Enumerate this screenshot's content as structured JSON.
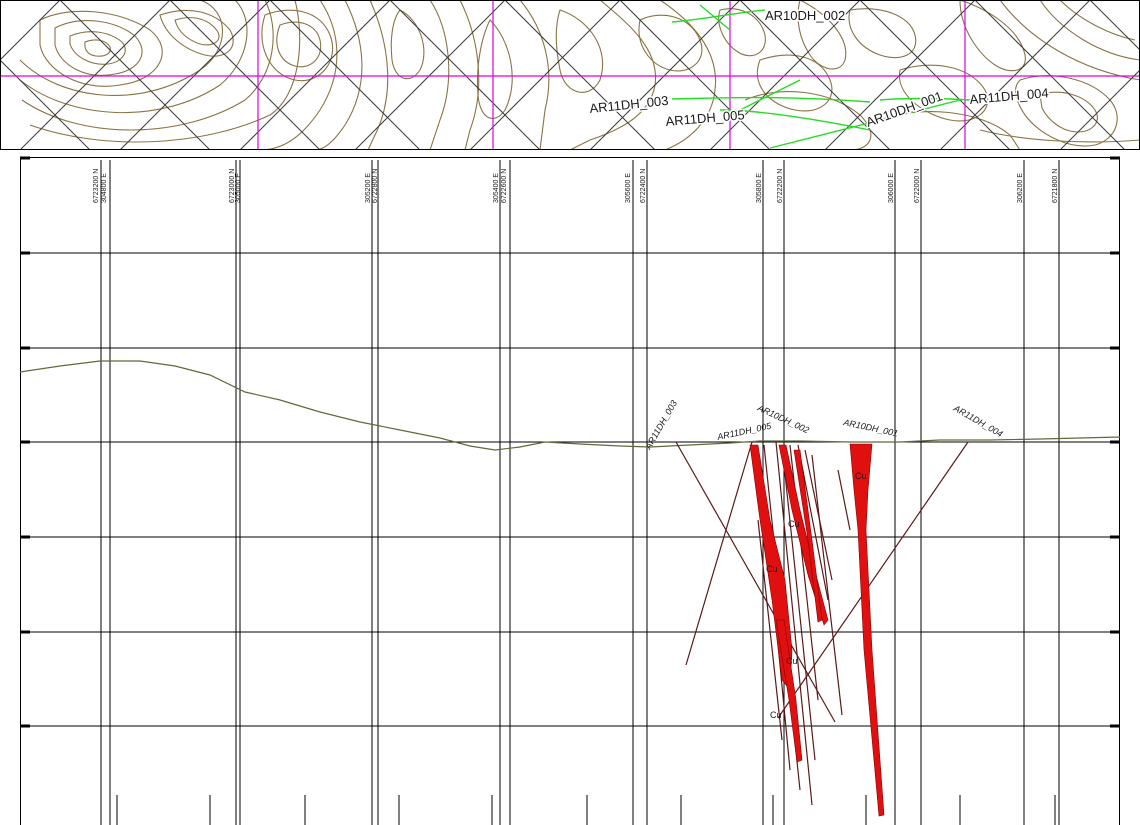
{
  "plan_view": {
    "drillholes": [
      {
        "id": "AR10DH_002"
      },
      {
        "id": "AR11DH_003"
      },
      {
        "id": "AR11DH_005"
      },
      {
        "id": "AR10DH_001"
      },
      {
        "id": "AR11DH_004"
      }
    ],
    "colors": {
      "contour": "#8a7444",
      "grid": "#3a3a3a",
      "section_line": "#e000e0",
      "drillhole_trace": "#22dd22"
    }
  },
  "section_view": {
    "coordinate_labels": [
      {
        "top": "6723200 N",
        "bottom": "304800 E"
      },
      {
        "top": "6723000 N",
        "bottom": "305000 E"
      },
      {
        "top": "305200 E",
        "bottom": "6722800 N"
      },
      {
        "top": "305400 E",
        "bottom": "6722600 N"
      },
      {
        "top": "305600 E",
        "bottom": "6722400 N"
      },
      {
        "top": "305800 E",
        "bottom": "6722200 N"
      },
      {
        "top": "306000 E",
        "bottom": "6722000 N"
      },
      {
        "top": "306200 E",
        "bottom": "6721800 N"
      }
    ],
    "drillholes": [
      {
        "id": "AR11DH_003"
      },
      {
        "id": "AR11DH_005"
      },
      {
        "id": "AR10DH_002"
      },
      {
        "id": "AR10DH_001"
      },
      {
        "id": "AR11DH_004"
      }
    ],
    "assay_labels": [
      "Cu",
      "Cu",
      "Cu",
      "Cu",
      "Cu"
    ],
    "colors": {
      "topography": "#5e6b3a",
      "ore_body": "#e01010",
      "drill_trace": "#5a1a1a",
      "grid": "#000000"
    }
  }
}
